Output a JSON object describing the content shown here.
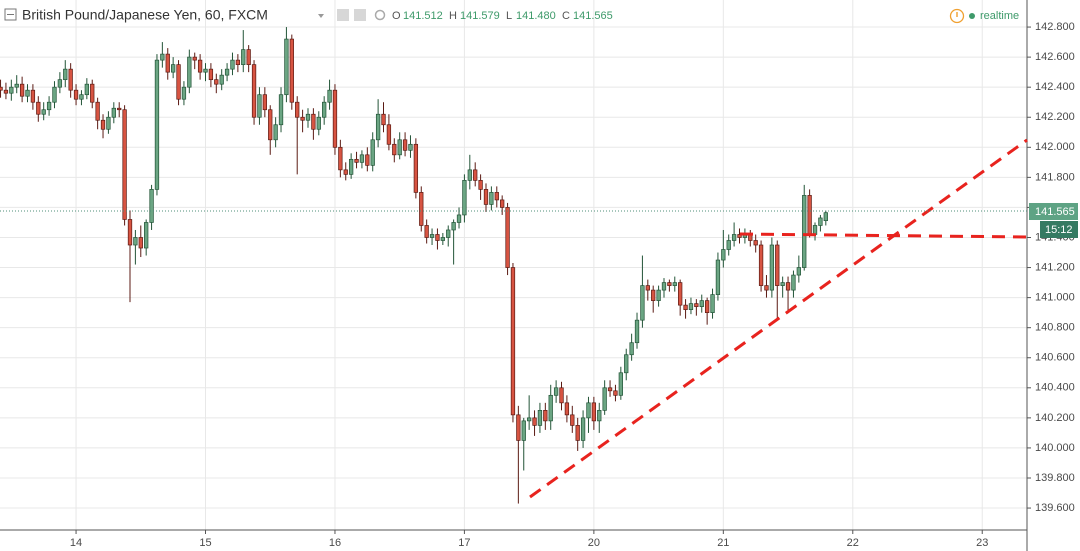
{
  "chart_data": {
    "type": "candlestick",
    "title": "British Pound/Japanese Yen, 60, FXCM",
    "header": {
      "open_key": "O",
      "open": "141.512",
      "high_key": "H",
      "high": "141.579",
      "low_key": "L",
      "low": "141.480",
      "close_key": "C",
      "close": "141.565",
      "status": "realtime"
    },
    "last_price_label": "141.565",
    "countdown": "15:12",
    "up_color": "#6ba583",
    "down_color": "#d75442",
    "up_border": "#225437",
    "down_border": "#5b1a13",
    "grid": true,
    "xlim": [
      -14.1,
      176.3
    ],
    "xticks": [
      {
        "value": 0,
        "label": "14"
      },
      {
        "value": 24,
        "label": "15"
      },
      {
        "value": 48,
        "label": "16"
      },
      {
        "value": 72,
        "label": "17"
      },
      {
        "value": 96,
        "label": "20"
      },
      {
        "value": 120,
        "label": "21"
      },
      {
        "value": 144,
        "label": "22"
      },
      {
        "value": 168,
        "label": "23"
      }
    ],
    "ylim": [
      139.454,
      142.98
    ],
    "yticks": [
      {
        "value": 139.6,
        "label": "139.600"
      },
      {
        "value": 139.8,
        "label": "139.800"
      },
      {
        "value": 140.0,
        "label": "140.000"
      },
      {
        "value": 140.2,
        "label": "140.200"
      },
      {
        "value": 140.4,
        "label": "140.400"
      },
      {
        "value": 140.6,
        "label": "140.600"
      },
      {
        "value": 140.8,
        "label": "140.800"
      },
      {
        "value": 141.0,
        "label": "141.000"
      },
      {
        "value": 141.2,
        "label": "141.200"
      },
      {
        "value": 141.4,
        "label": "141.400"
      },
      {
        "value": 141.6,
        "label": "141.600"
      },
      {
        "value": 141.8,
        "label": "141.800"
      },
      {
        "value": 142.0,
        "label": "142.000"
      },
      {
        "value": 142.2,
        "label": "142.200"
      },
      {
        "value": 142.4,
        "label": "142.400"
      },
      {
        "value": 142.6,
        "label": "142.600"
      },
      {
        "value": 142.8,
        "label": "142.800"
      }
    ],
    "x": [
      -14,
      -13,
      -12,
      -11,
      -10,
      -9,
      -8,
      -7,
      -6,
      -5,
      -4,
      -3,
      -2,
      -1,
      0,
      1,
      2,
      3,
      4,
      5,
      6,
      7,
      8,
      9,
      10,
      11,
      12,
      13,
      14,
      15,
      16,
      17,
      18,
      19,
      20,
      21,
      22,
      23,
      24,
      25,
      26,
      27,
      28,
      29,
      30,
      31,
      32,
      33,
      34,
      35,
      36,
      37,
      38,
      39,
      40,
      41,
      42,
      43,
      44,
      45,
      46,
      47,
      48,
      49,
      50,
      51,
      52,
      53,
      54,
      55,
      56,
      57,
      58,
      59,
      60,
      61,
      62,
      63,
      64,
      65,
      66,
      67,
      68,
      69,
      70,
      71,
      72,
      73,
      74,
      75,
      76,
      77,
      78,
      79,
      80,
      81,
      82,
      83,
      84,
      85,
      86,
      87,
      88,
      89,
      90,
      91,
      92,
      93,
      94,
      95,
      96,
      97,
      98,
      99,
      100,
      101,
      102,
      103,
      104,
      105,
      106,
      107,
      108,
      109,
      110,
      111,
      112,
      113,
      114,
      115,
      116,
      117,
      118,
      119,
      120,
      121,
      122,
      123,
      124,
      125,
      126,
      127,
      128,
      129,
      130,
      131,
      132,
      133,
      134,
      135,
      136,
      137,
      138,
      139
    ],
    "open": [
      142.4,
      142.38,
      142.36,
      142.4,
      142.42,
      142.34,
      142.38,
      142.3,
      142.22,
      142.25,
      142.3,
      142.4,
      142.45,
      142.52,
      142.38,
      142.32,
      142.35,
      142.42,
      142.3,
      142.18,
      142.12,
      142.2,
      142.26,
      142.25,
      141.52,
      141.35,
      141.4,
      141.33,
      141.5,
      141.72,
      142.58,
      142.62,
      142.5,
      142.55,
      142.32,
      142.4,
      142.6,
      142.58,
      142.5,
      142.52,
      142.45,
      142.42,
      142.48,
      142.52,
      142.58,
      142.55,
      142.65,
      142.55,
      142.2,
      142.35,
      142.25,
      142.05,
      142.15,
      142.35,
      142.72,
      142.3,
      142.2,
      142.18,
      142.22,
      142.12,
      142.2,
      142.3,
      142.38,
      142.0,
      141.85,
      141.82,
      141.92,
      141.9,
      141.95,
      141.88,
      142.05,
      142.22,
      142.15,
      142.02,
      141.95,
      142.05,
      141.98,
      142.02,
      141.7,
      141.48,
      141.4,
      141.42,
      141.38,
      141.4,
      141.45,
      141.5,
      141.55,
      141.78,
      141.85,
      141.78,
      141.72,
      141.62,
      141.7,
      141.65,
      141.6,
      141.2,
      140.22,
      140.05,
      140.18,
      140.2,
      140.15,
      140.25,
      140.18,
      140.35,
      140.4,
      140.3,
      140.22,
      140.15,
      140.05,
      140.2,
      140.3,
      140.18,
      140.25,
      140.4,
      140.38,
      140.35,
      140.5,
      140.62,
      140.7,
      140.85,
      141.08,
      141.05,
      140.98,
      141.05,
      141.1,
      141.08,
      141.1,
      140.95,
      140.92,
      140.96,
      140.94,
      140.98,
      140.9,
      141.02,
      141.25,
      141.32,
      141.38,
      141.42,
      141.4,
      141.42,
      141.38,
      141.35,
      141.08,
      141.05,
      141.35,
      141.08,
      141.1,
      141.05,
      141.15,
      141.2,
      141.68,
      141.42,
      141.48,
      141.512
    ],
    "high": [
      142.45,
      142.43,
      142.45,
      142.48,
      142.47,
      142.42,
      142.42,
      142.34,
      142.3,
      142.34,
      142.44,
      142.5,
      142.58,
      142.56,
      142.42,
      142.38,
      142.46,
      142.45,
      142.33,
      142.22,
      142.24,
      142.3,
      142.3,
      142.28,
      141.58,
      141.45,
      141.48,
      141.52,
      141.75,
      142.62,
      142.7,
      142.66,
      142.6,
      142.58,
      142.44,
      142.65,
      142.63,
      142.62,
      142.56,
      142.56,
      142.49,
      142.52,
      142.56,
      142.63,
      142.62,
      142.78,
      142.68,
      142.58,
      142.4,
      142.4,
      142.28,
      142.2,
      142.4,
      142.8,
      142.75,
      142.34,
      142.25,
      142.26,
      142.26,
      142.24,
      142.34,
      142.45,
      142.42,
      142.05,
      141.9,
      141.96,
      141.97,
      141.98,
      142.0,
      142.1,
      142.32,
      142.3,
      142.22,
      142.06,
      142.1,
      142.1,
      142.08,
      142.06,
      141.74,
      141.52,
      141.46,
      141.46,
      141.43,
      141.48,
      141.52,
      141.6,
      141.82,
      141.95,
      141.9,
      141.82,
      141.76,
      141.74,
      141.74,
      141.68,
      141.63,
      141.23,
      140.28,
      140.2,
      140.35,
      140.25,
      140.3,
      140.3,
      140.42,
      140.45,
      140.44,
      140.35,
      140.28,
      140.2,
      140.25,
      140.34,
      140.34,
      140.3,
      140.45,
      140.45,
      140.42,
      140.54,
      140.66,
      140.76,
      140.9,
      141.28,
      141.12,
      141.08,
      141.08,
      141.13,
      141.12,
      141.14,
      141.12,
      140.99,
      141.0,
      140.99,
      141.02,
      141.0,
      141.06,
      141.3,
      141.45,
      141.42,
      141.5,
      141.46,
      141.46,
      141.45,
      141.42,
      141.38,
      141.15,
      141.4,
      141.38,
      141.14,
      141.14,
      141.18,
      141.28,
      141.75,
      141.72,
      141.5,
      141.55,
      141.579
    ],
    "low": [
      142.33,
      142.32,
      142.31,
      142.36,
      142.3,
      142.3,
      142.25,
      142.17,
      142.18,
      142.21,
      142.26,
      142.36,
      142.4,
      142.33,
      142.28,
      142.28,
      142.32,
      142.26,
      142.12,
      142.06,
      142.09,
      142.16,
      142.2,
      141.48,
      140.97,
      141.22,
      141.27,
      141.28,
      141.45,
      141.68,
      142.53,
      142.45,
      142.46,
      142.28,
      142.28,
      142.36,
      142.52,
      142.45,
      142.44,
      142.4,
      142.36,
      142.38,
      142.44,
      142.48,
      142.5,
      142.5,
      142.5,
      142.15,
      142.15,
      142.2,
      141.95,
      142.0,
      142.1,
      142.3,
      142.25,
      141.82,
      142.1,
      142.13,
      142.05,
      142.08,
      142.15,
      142.25,
      141.95,
      141.8,
      141.78,
      141.79,
      141.86,
      141.86,
      141.84,
      141.84,
      142.0,
      142.1,
      141.98,
      141.9,
      141.92,
      141.94,
      141.93,
      141.66,
      141.44,
      141.36,
      141.35,
      141.32,
      141.35,
      141.34,
      141.22,
      141.46,
      141.5,
      141.72,
      141.74,
      141.65,
      141.57,
      141.58,
      141.6,
      141.55,
      141.15,
      140.17,
      139.63,
      139.85,
      140.12,
      140.08,
      140.1,
      140.12,
      140.12,
      140.3,
      140.25,
      140.17,
      140.1,
      139.98,
      140.0,
      140.1,
      140.12,
      140.1,
      140.22,
      140.34,
      140.31,
      140.32,
      140.45,
      140.58,
      140.66,
      140.8,
      140.98,
      140.9,
      140.94,
      141.0,
      141.04,
      141.04,
      140.88,
      140.86,
      140.89,
      140.88,
      140.9,
      140.82,
      140.86,
      140.98,
      141.2,
      141.28,
      141.34,
      141.36,
      141.36,
      141.34,
      141.3,
      141.04,
      141.0,
      141.0,
      140.85,
      141.0,
      140.9,
      141.0,
      141.1,
      141.18,
      141.4,
      141.38,
      141.44,
      141.48
    ],
    "close": [
      142.38,
      142.36,
      142.4,
      142.42,
      142.34,
      142.38,
      142.3,
      142.22,
      142.25,
      142.3,
      142.4,
      142.45,
      142.52,
      142.38,
      142.32,
      142.35,
      142.42,
      142.3,
      142.18,
      142.12,
      142.2,
      142.26,
      142.25,
      141.52,
      141.35,
      141.4,
      141.33,
      141.5,
      141.72,
      142.58,
      142.62,
      142.5,
      142.55,
      142.32,
      142.4,
      142.6,
      142.58,
      142.5,
      142.52,
      142.45,
      142.42,
      142.48,
      142.52,
      142.58,
      142.55,
      142.65,
      142.55,
      142.2,
      142.35,
      142.25,
      142.05,
      142.15,
      142.35,
      142.72,
      142.3,
      142.2,
      142.18,
      142.22,
      142.12,
      142.2,
      142.3,
      142.38,
      142.0,
      141.85,
      141.82,
      141.92,
      141.9,
      141.95,
      141.88,
      142.05,
      142.22,
      142.15,
      142.02,
      141.95,
      142.05,
      141.98,
      142.02,
      141.7,
      141.48,
      141.4,
      141.42,
      141.38,
      141.4,
      141.45,
      141.5,
      141.55,
      141.78,
      141.85,
      141.78,
      141.72,
      141.62,
      141.7,
      141.65,
      141.6,
      141.2,
      140.22,
      140.05,
      140.18,
      140.2,
      140.15,
      140.25,
      140.18,
      140.35,
      140.4,
      140.3,
      140.22,
      140.15,
      140.05,
      140.2,
      140.3,
      140.18,
      140.25,
      140.4,
      140.38,
      140.35,
      140.5,
      140.62,
      140.7,
      140.85,
      141.08,
      141.05,
      140.98,
      141.05,
      141.1,
      141.08,
      141.1,
      140.95,
      140.92,
      140.96,
      140.94,
      140.98,
      140.9,
      141.02,
      141.25,
      141.32,
      141.38,
      141.42,
      141.4,
      141.42,
      141.38,
      141.35,
      141.08,
      141.05,
      141.35,
      141.08,
      141.1,
      141.05,
      141.15,
      141.2,
      141.68,
      141.42,
      141.48,
      141.53,
      141.565
    ]
  }
}
